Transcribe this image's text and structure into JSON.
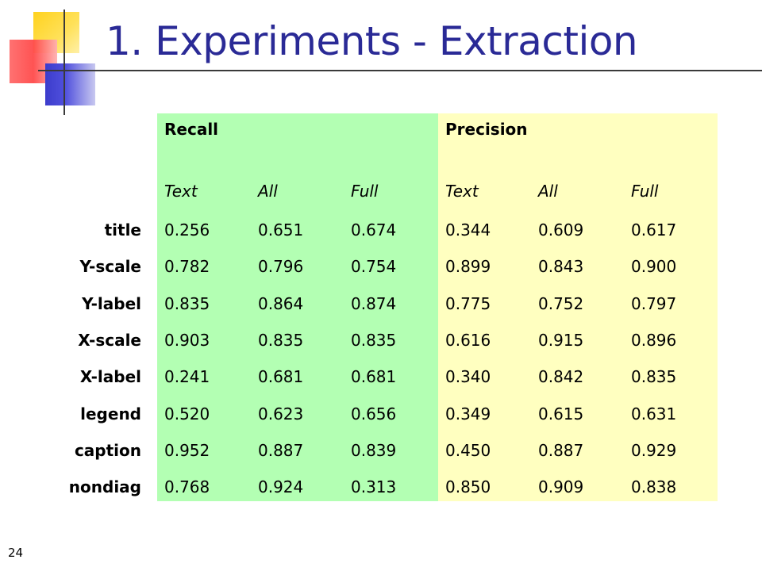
{
  "slide": {
    "title": "1. Experiments - Extraction",
    "page_number": "24"
  },
  "table": {
    "group_headers": [
      "Recall",
      "Precision"
    ],
    "sub_headers": [
      "Text",
      "All",
      "Full",
      "Text",
      "All",
      "Full"
    ],
    "rows": [
      {
        "label": "title",
        "values": [
          "0.256",
          "0.651",
          "0.674",
          "0.344",
          "0.609",
          "0.617"
        ]
      },
      {
        "label": "Y-scale",
        "values": [
          "0.782",
          "0.796",
          "0.754",
          "0.899",
          "0.843",
          "0.900"
        ]
      },
      {
        "label": "Y-label",
        "values": [
          "0.835",
          "0.864",
          "0.874",
          "0.775",
          "0.752",
          "0.797"
        ]
      },
      {
        "label": "X-scale",
        "values": [
          "0.903",
          "0.835",
          "0.835",
          "0.616",
          "0.915",
          "0.896"
        ]
      },
      {
        "label": "X-label",
        "values": [
          "0.241",
          "0.681",
          "0.681",
          "0.340",
          "0.842",
          "0.835"
        ]
      },
      {
        "label": "legend",
        "values": [
          "0.520",
          "0.623",
          "0.656",
          "0.349",
          "0.615",
          "0.631"
        ]
      },
      {
        "label": "caption",
        "values": [
          "0.952",
          "0.887",
          "0.839",
          "0.450",
          "0.887",
          "0.929"
        ]
      },
      {
        "label": "nondiag",
        "values": [
          "0.768",
          "0.924",
          "0.313",
          "0.850",
          "0.909",
          "0.838"
        ]
      }
    ]
  },
  "colors": {
    "recall_bg": "#b3ffb3",
    "precision_bg": "#ffffc0",
    "title_color": "#2a2a96"
  }
}
